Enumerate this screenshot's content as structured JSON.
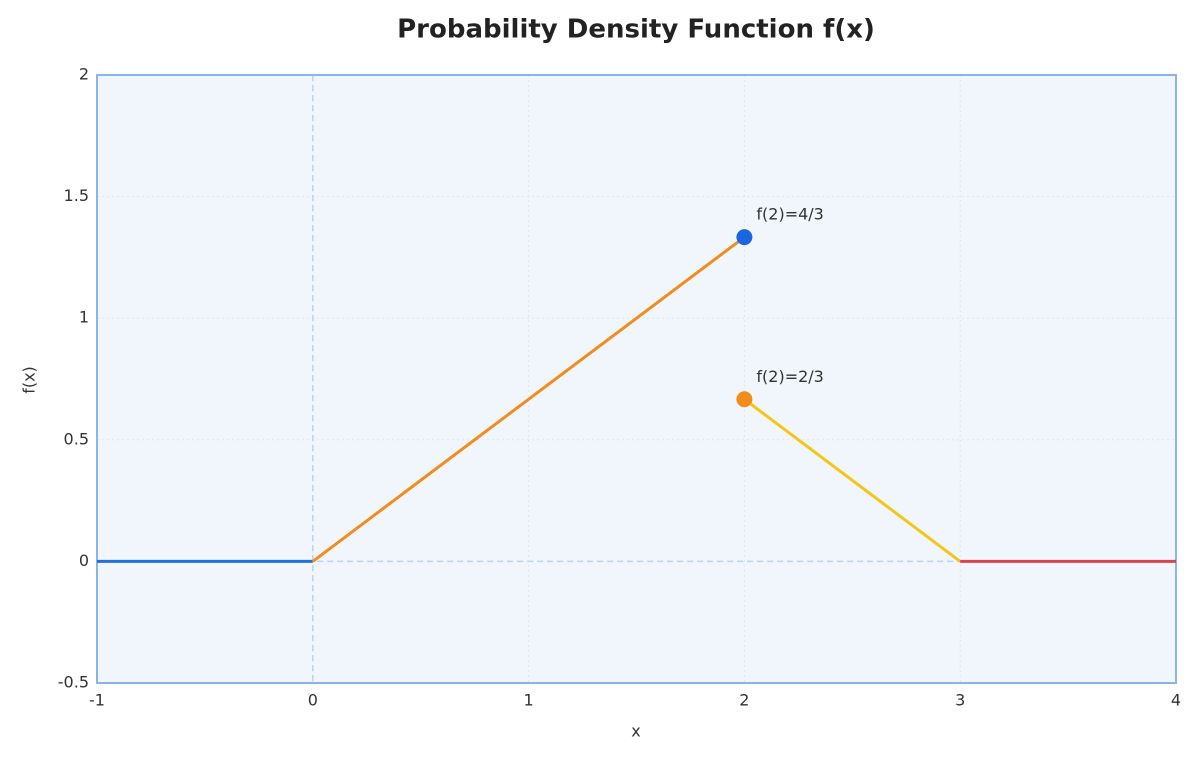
{
  "chart_data": {
    "type": "line",
    "title": "Probability Density Function f(x)",
    "x_label": "x",
    "y_label": "f(x)",
    "xlim": [
      -1,
      4
    ],
    "ylim": [
      -0.5,
      2
    ],
    "xticks": [
      -1,
      0,
      1,
      2,
      3,
      4
    ],
    "yticks": [
      -0.5,
      0,
      0.5,
      1,
      1.5,
      2
    ],
    "grid": true,
    "reference_lines": {
      "x": [
        0
      ],
      "y": [
        0
      ]
    },
    "series": [
      {
        "color": "#1f6fe0",
        "x": [
          -1,
          0
        ],
        "values": [
          0,
          0
        ]
      },
      {
        "color": "#f28c1c",
        "x": [
          0,
          2
        ],
        "values": [
          0,
          1.3333
        ]
      },
      {
        "color": "#f5c518",
        "x": [
          2,
          3
        ],
        "values": [
          0.6667,
          0
        ]
      },
      {
        "color": "#d9434f",
        "x": [
          3,
          4
        ],
        "values": [
          0,
          0
        ]
      }
    ],
    "points": [
      {
        "x": 2,
        "y": 1.3333,
        "color": "#1a66e0",
        "label": "f(2)=4/3"
      },
      {
        "x": 2,
        "y": 0.6667,
        "color": "#f28c1c",
        "label": "f(2)=2/3"
      }
    ]
  }
}
